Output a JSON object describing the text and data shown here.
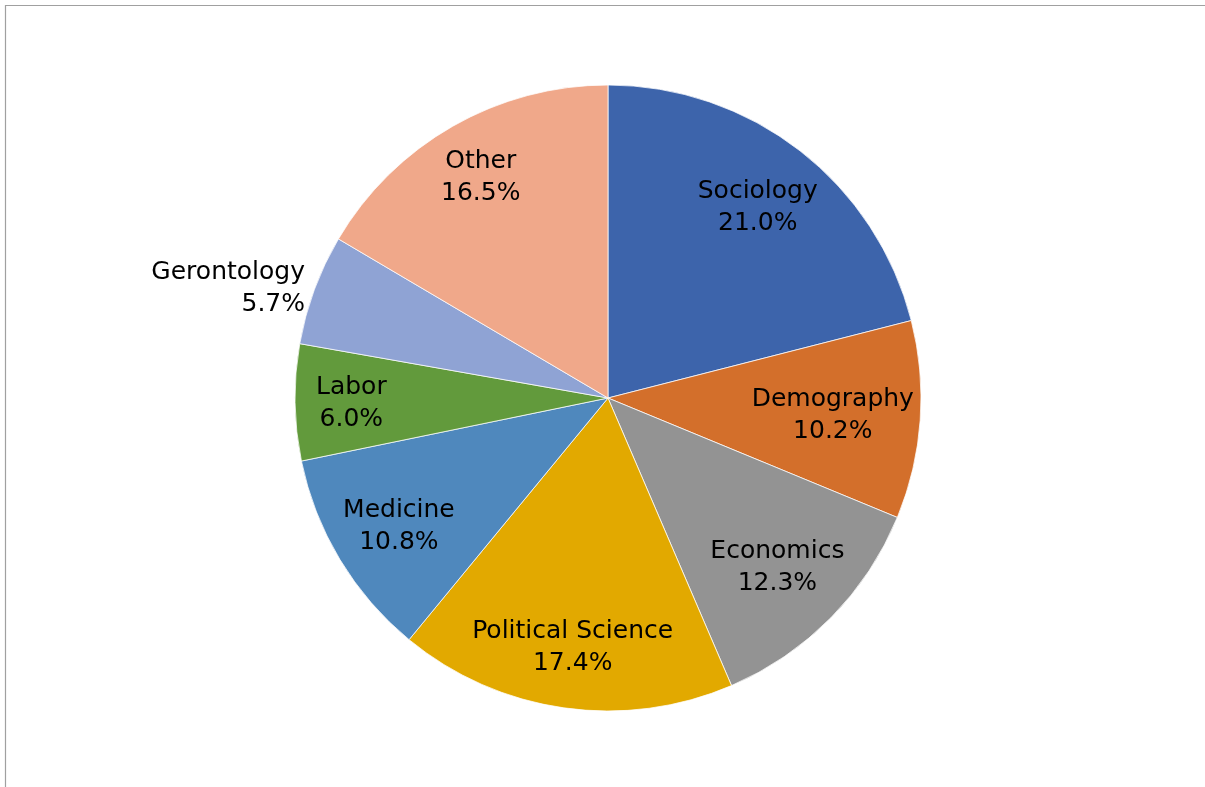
{
  "chart_data": {
    "type": "pie",
    "categories": [
      "Sociology",
      "Demography",
      "Economics",
      "Political Science",
      "Medicine",
      "Labor",
      "Gerontology",
      "Other"
    ],
    "values": [
      21.0,
      10.2,
      12.3,
      17.4,
      10.8,
      6.0,
      5.7,
      16.5
    ],
    "value_labels": [
      "21.0%",
      "10.2%",
      "12.3%",
      "17.4%",
      "10.8%",
      "6.0%",
      "5.7%",
      "16.5%"
    ],
    "colors": [
      "#3d64ab",
      "#d36f2b",
      "#939393",
      "#e2a900",
      "#4f88bd",
      "#629a3c",
      "#8fa3d4",
      "#f0a88a"
    ]
  }
}
